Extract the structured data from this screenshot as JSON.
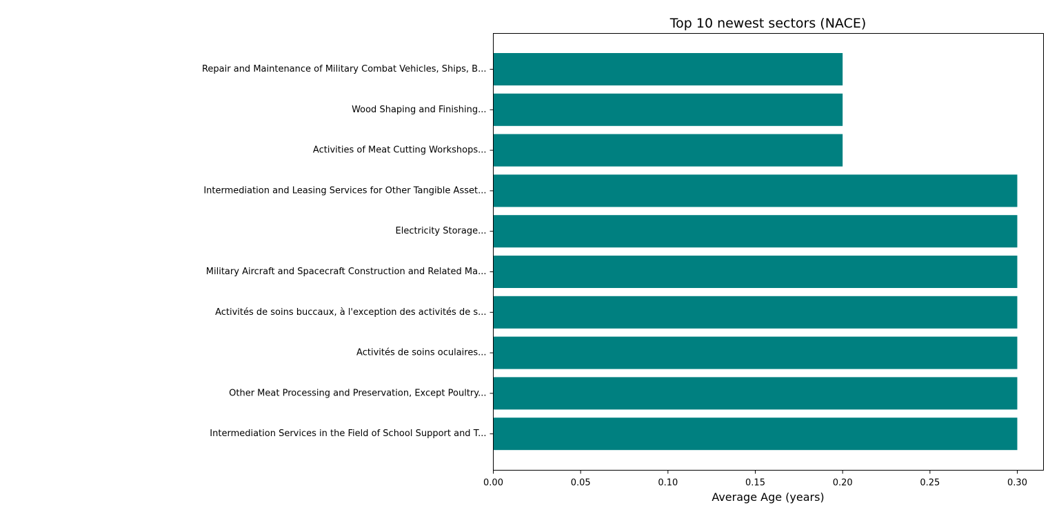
{
  "chart_data": {
    "type": "bar",
    "orientation": "horizontal",
    "title": "Top 10 newest sectors (NACE)",
    "xlabel": "Average Age (years)",
    "ylabel": "",
    "xlim": [
      0,
      0.315
    ],
    "xticks": [
      "0.00",
      "0.05",
      "0.10",
      "0.15",
      "0.20",
      "0.25",
      "0.30"
    ],
    "grid": false,
    "bar_color": "#008080",
    "categories": [
      "Repair and Maintenance of Military Combat Vehicles, Ships, B...",
      "Wood Shaping and Finishing...",
      "Activities of Meat Cutting Workshops...",
      "Intermediation and Leasing Services for Other Tangible Asset...",
      "Electricity Storage...",
      "Military Aircraft and Spacecraft Construction and Related Ma...",
      "Activités de soins buccaux, à l'exception des activités de s...",
      "Activités de soins oculaires...",
      "Other Meat Processing and Preservation, Except Poultry...",
      "Intermediation Services in the Field of School Support and T..."
    ],
    "values": [
      0.2,
      0.2,
      0.2,
      0.3,
      0.3,
      0.3,
      0.3,
      0.3,
      0.3,
      0.3
    ]
  }
}
